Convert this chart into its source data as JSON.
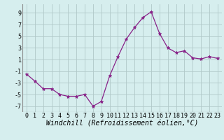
{
  "x": [
    0,
    1,
    2,
    3,
    4,
    5,
    6,
    7,
    8,
    9,
    10,
    11,
    12,
    13,
    14,
    15,
    16,
    17,
    18,
    19,
    20,
    21,
    22,
    23
  ],
  "y": [
    -1.5,
    -2.7,
    -4.0,
    -4.0,
    -5.0,
    -5.3,
    -5.3,
    -5.0,
    -7.0,
    -6.2,
    -1.8,
    1.5,
    4.5,
    6.5,
    8.2,
    9.2,
    5.5,
    3.0,
    2.2,
    2.5,
    1.3,
    1.1,
    1.5,
    1.2
  ],
  "line_color": "#882288",
  "marker": "*",
  "marker_size": 3.5,
  "bg_color": "#d6eeee",
  "grid_color": "#b0c8c8",
  "xlabel": "Windchill (Refroidissement éolien,°C)",
  "xlabel_fontsize": 7,
  "tick_fontsize": 6,
  "xlim": [
    -0.5,
    23.5
  ],
  "ylim": [
    -8,
    10.5
  ],
  "yticks": [
    -7,
    -5,
    -3,
    -1,
    1,
    3,
    5,
    7,
    9
  ],
  "xticks": [
    0,
    1,
    2,
    3,
    4,
    5,
    6,
    7,
    8,
    9,
    10,
    11,
    12,
    13,
    14,
    15,
    16,
    17,
    18,
    19,
    20,
    21,
    22,
    23
  ]
}
